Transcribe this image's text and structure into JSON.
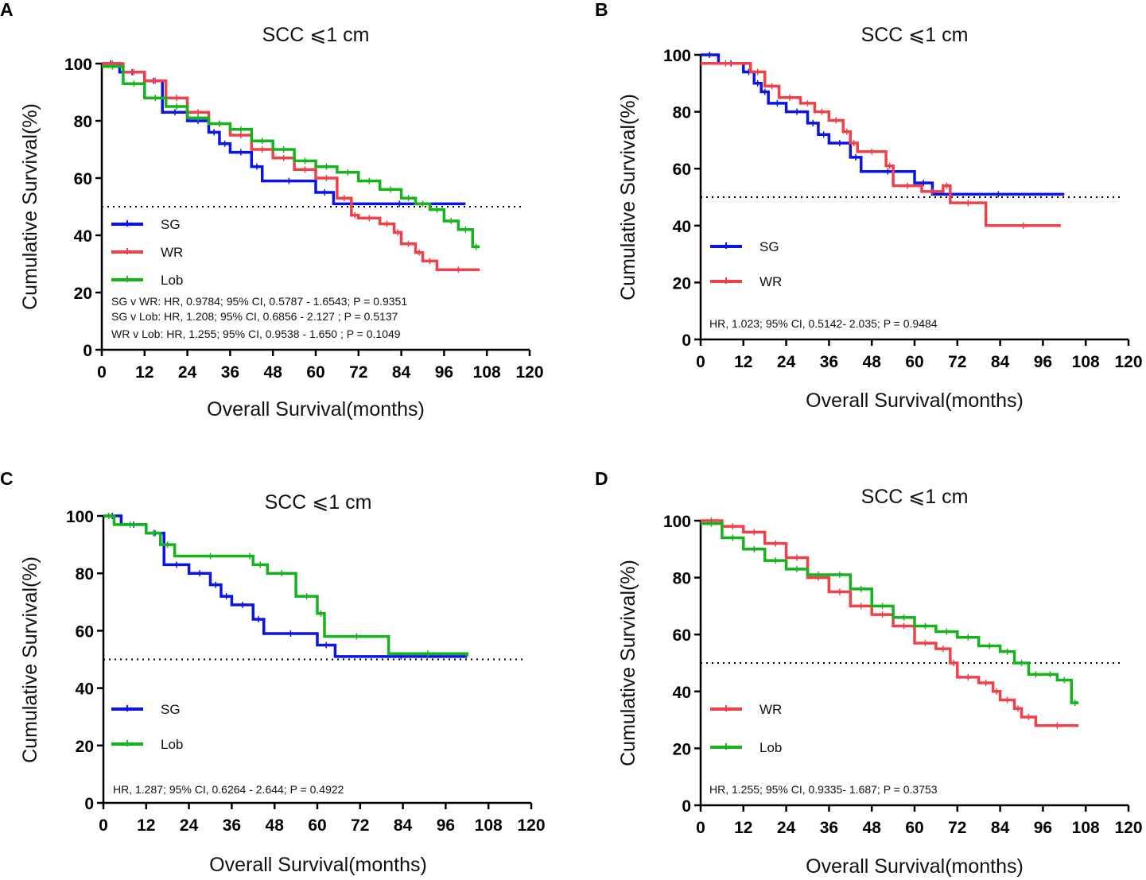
{
  "chart_data": [
    {
      "panel": "A",
      "type": "line",
      "title": "SCC ⩽1 cm",
      "xlabel": "Overall Survival(months)",
      "ylabel": "Cumulative Survival(%)",
      "xlim": [
        0,
        120
      ],
      "ylim": [
        0,
        100
      ],
      "xticks": [
        "0",
        "12",
        "24",
        "36",
        "48",
        "60",
        "72",
        "84",
        "96",
        "108",
        "120"
      ],
      "yticks": [
        "0",
        "20",
        "40",
        "60",
        "80",
        "100"
      ],
      "reference_line": 50,
      "series": [
        {
          "name": "SG",
          "color": "#0a14e6",
          "x": [
            0,
            5,
            12,
            17,
            24,
            30,
            33,
            36,
            42,
            45,
            60,
            65,
            102
          ],
          "y": [
            100,
            97,
            94,
            83,
            80,
            76,
            72,
            69,
            64,
            59,
            55,
            51,
            51
          ]
        },
        {
          "name": "WR",
          "color": "#f0404a",
          "x": [
            0,
            6,
            12,
            18,
            24,
            30,
            36,
            42,
            48,
            54,
            60,
            66,
            70,
            72,
            78,
            82,
            84,
            88,
            90,
            94,
            106
          ],
          "y": [
            100,
            97,
            94,
            88,
            83,
            79,
            75,
            70,
            67,
            63,
            60,
            53,
            47,
            46,
            44,
            41,
            37,
            34,
            31,
            28,
            28
          ]
        },
        {
          "name": "Lob",
          "color": "#16b41c",
          "x": [
            0,
            6,
            12,
            18,
            24,
            30,
            36,
            42,
            48,
            54,
            60,
            66,
            72,
            78,
            84,
            88,
            92,
            96,
            100,
            104,
            106
          ],
          "y": [
            99,
            93,
            88,
            85,
            81,
            79,
            77,
            73,
            70,
            66,
            64,
            62,
            59,
            56,
            53,
            51,
            49,
            45,
            42,
            36,
            36
          ]
        }
      ],
      "stats": [
        "SG v WR: HR, 0.9784; 95% CI, 0.5787 - 1.6543; P = 0.9351",
        "SG v Lob: HR, 1.208; 95% CI, 0.6856  - 2.127 ; P = 0.5137",
        "WR v Lob: HR, 1.255; 95% CI, 0.9538 - 1.650 ; P = 0.1049"
      ]
    },
    {
      "panel": "B",
      "type": "line",
      "title": "SCC ⩽1 cm",
      "xlabel": "Overall Survival(months)",
      "ylabel": "Cumulative Survival(%)",
      "xlim": [
        0,
        120
      ],
      "ylim": [
        0,
        100
      ],
      "xticks": [
        "0",
        "12",
        "24",
        "36",
        "48",
        "60",
        "72",
        "84",
        "96",
        "108",
        "120"
      ],
      "yticks": [
        "0",
        "20",
        "40",
        "60",
        "80",
        "100"
      ],
      "reference_line": 50,
      "series": [
        {
          "name": "SG",
          "color": "#0a14e6",
          "x": [
            0,
            5,
            12,
            15,
            17,
            19,
            24,
            30,
            33,
            36,
            42,
            45,
            60,
            65,
            102
          ],
          "y": [
            100,
            97,
            94,
            90,
            87,
            83,
            80,
            76,
            72,
            69,
            64,
            59,
            55,
            51,
            51
          ]
        },
        {
          "name": "WR",
          "color": "#f0404a",
          "x": [
            0,
            14,
            18,
            22,
            28,
            32,
            36,
            40,
            42,
            44,
            52,
            54,
            62,
            68,
            70,
            80,
            101
          ],
          "y": [
            97,
            94,
            89,
            85,
            83,
            80,
            77,
            73,
            69,
            66,
            61,
            54,
            52,
            54,
            48,
            40,
            40
          ]
        }
      ],
      "stats": [
        "HR, 1.023; 95% CI, 0.5142- 2.035; P = 0.9484"
      ]
    },
    {
      "panel": "C",
      "type": "line",
      "title": "SCC ⩽1 cm",
      "xlabel": "Overall Survival(months)",
      "ylabel": "Cumulative Survival(%)",
      "xlim": [
        0,
        120
      ],
      "ylim": [
        0,
        100
      ],
      "xticks": [
        "0",
        "12",
        "24",
        "36",
        "48",
        "60",
        "72",
        "84",
        "96",
        "108",
        "120"
      ],
      "yticks": [
        "0",
        "20",
        "40",
        "60",
        "80",
        "100"
      ],
      "reference_line": 50,
      "series": [
        {
          "name": "SG",
          "color": "#0a14e6",
          "x": [
            0,
            5,
            12,
            17,
            24,
            30,
            33,
            36,
            42,
            45,
            60,
            65,
            102
          ],
          "y": [
            100,
            97,
            94,
            83,
            80,
            76,
            72,
            69,
            64,
            59,
            55,
            51,
            51
          ]
        },
        {
          "name": "Lob",
          "color": "#16b41c",
          "x": [
            0,
            3,
            12,
            16,
            20,
            40,
            42,
            46,
            54,
            60,
            62,
            80,
            102
          ],
          "y": [
            100,
            97,
            94,
            90,
            86,
            86,
            83,
            80,
            72,
            66,
            58,
            52,
            51
          ]
        }
      ],
      "stats": [
        "HR, 1.287; 95% CI, 0.6264  - 2.644; P = 0.4922"
      ]
    },
    {
      "panel": "D",
      "type": "line",
      "title": "SCC ⩽1 cm",
      "xlabel": "Overall Survival(months)",
      "ylabel": "Cumulative Survival(%)",
      "xlim": [
        0,
        120
      ],
      "ylim": [
        0,
        100
      ],
      "xticks": [
        "0",
        "12",
        "24",
        "36",
        "48",
        "60",
        "72",
        "84",
        "96",
        "108",
        "120"
      ],
      "yticks": [
        "0",
        "20",
        "40",
        "60",
        "80",
        "100"
      ],
      "reference_line": 50,
      "series": [
        {
          "name": "WR",
          "color": "#f0404a",
          "x": [
            0,
            6,
            12,
            18,
            24,
            30,
            36,
            42,
            48,
            54,
            60,
            66,
            70,
            72,
            78,
            82,
            84,
            88,
            90,
            94,
            106
          ],
          "y": [
            100,
            98,
            96,
            92,
            87,
            80,
            75,
            70,
            67,
            63,
            57,
            55,
            50,
            45,
            43,
            40,
            37,
            34,
            31,
            28,
            28
          ]
        },
        {
          "name": "Lob",
          "color": "#16b41c",
          "x": [
            0,
            6,
            12,
            18,
            24,
            30,
            36,
            42,
            48,
            54,
            60,
            66,
            72,
            78,
            84,
            88,
            92,
            96,
            100,
            104,
            106
          ],
          "y": [
            99,
            94,
            90,
            86,
            83,
            81,
            81,
            76,
            70,
            66,
            63,
            61,
            59,
            56,
            54,
            50,
            46,
            46,
            44,
            36,
            36
          ]
        }
      ],
      "stats": [
        "HR, 1.255; 95% CI, 0.9335- 1.687; P = 0.3753"
      ]
    }
  ]
}
